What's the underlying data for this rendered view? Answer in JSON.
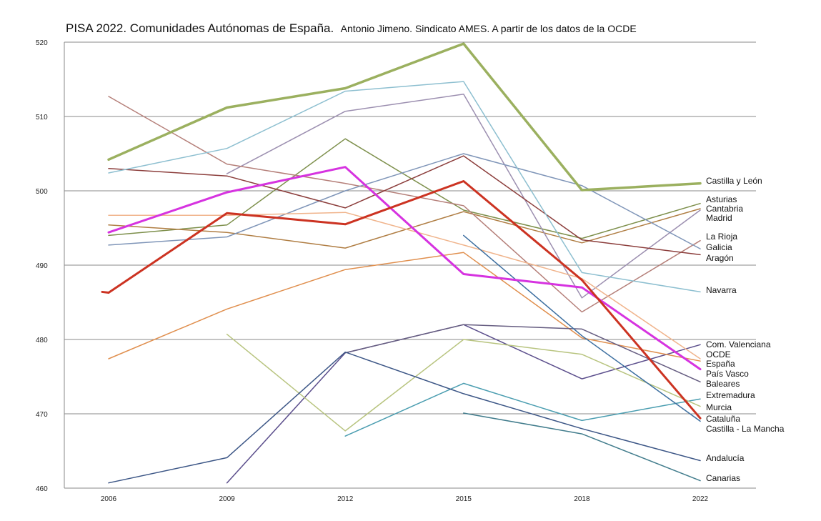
{
  "chart_data": {
    "type": "line",
    "title": "PISA 2022. Comunidades Autónomas de España.",
    "subtitle": "Antonio Jimeno. Sindicato AMES. A partir de los datos de la OCDE",
    "xlabel": "",
    "ylabel": "",
    "x": [
      2006,
      2009,
      2012,
      2015,
      2018,
      2022
    ],
    "ylim": [
      460,
      520
    ],
    "yticks": [
      460,
      470,
      480,
      490,
      500,
      510,
      520
    ],
    "grid": true,
    "series": [
      {
        "name": "Castilla y León",
        "color": "#9bb05f",
        "width": 3.5,
        "values": [
          504.2,
          511.2,
          513.8,
          519.8,
          500.1,
          501.0
        ]
      },
      {
        "name": "Asturias",
        "color": "#7d8f4b",
        "width": 1.5,
        "values": [
          494.0,
          495.4,
          507.0,
          497.4,
          493.6,
          498.3
        ]
      },
      {
        "name": "Cantabria",
        "color": "#b07e44",
        "width": 1.5,
        "values": [
          495.4,
          494.4,
          492.3,
          497.2,
          493.0,
          497.6
        ]
      },
      {
        "name": "Madrid",
        "color": "#9c8fb0",
        "width": 1.5,
        "values": [
          null,
          502.3,
          510.7,
          513.0,
          485.6,
          497.4
        ]
      },
      {
        "name": "La Rioja",
        "color": "#b57f79",
        "width": 1.5,
        "values": [
          512.7,
          503.6,
          501.0,
          498.0,
          483.7,
          493.3
        ]
      },
      {
        "name": "Galicia",
        "color": "#7f95b8",
        "width": 1.5,
        "values": [
          492.7,
          493.8,
          500.0,
          505.0,
          500.7,
          492.2
        ]
      },
      {
        "name": "Aragón",
        "color": "#8c3e3c",
        "width": 1.5,
        "values": [
          503.0,
          502.0,
          497.7,
          504.7,
          493.4,
          491.4
        ]
      },
      {
        "name": "Navarra",
        "color": "#8dbfd0",
        "width": 1.5,
        "values": [
          502.4,
          505.7,
          513.4,
          514.7,
          489.0,
          486.4
        ]
      },
      {
        "name": "Com. Valenciana",
        "color": "#5b4e8c",
        "width": 1.5,
        "values": [
          null,
          460.7,
          478.2,
          482.0,
          474.7,
          479.3
        ]
      },
      {
        "name": "OCDE",
        "color": "#f0b48c",
        "width": 1.5,
        "values": [
          496.7,
          496.7,
          497.1,
          492.7,
          488.2,
          477.4
        ]
      },
      {
        "name": "España",
        "color": "#e08f4e",
        "width": 1.5,
        "values": [
          477.4,
          484.1,
          489.4,
          491.7,
          480.2,
          477.1
        ]
      },
      {
        "name": "País Vasco",
        "color": "#d633e0",
        "width": 3,
        "values": [
          494.4,
          499.8,
          503.2,
          488.8,
          487.0,
          476.0
        ]
      },
      {
        "name": "Baleares",
        "color": "#655c80",
        "width": 1.5,
        "values": [
          null,
          null,
          478.2,
          482.0,
          481.4,
          474.3
        ]
      },
      {
        "name": "Extremadura",
        "color": "#4a9db0",
        "width": 1.5,
        "values": [
          null,
          null,
          467.0,
          474.1,
          469.1,
          472.0
        ]
      },
      {
        "name": "Murcia",
        "color": "#b8c47f",
        "width": 1.5,
        "values": [
          null,
          480.7,
          467.7,
          480.0,
          478.0,
          471.0
        ]
      },
      {
        "name": "Cataluña",
        "color": "#cc3322",
        "width": 3,
        "values": [
          486.3,
          497.0,
          495.5,
          501.3,
          488.0,
          469.4
        ]
      },
      {
        "name": "Castilla - La Mancha",
        "color": "#3d6fa0",
        "width": 1.5,
        "values": [
          null,
          null,
          null,
          494.0,
          480.5,
          469.0
        ]
      },
      {
        "name": "Andalucía",
        "color": "#3c5686",
        "width": 1.5,
        "values": [
          460.7,
          464.1,
          478.3,
          472.7,
          468.0,
          463.7
        ]
      },
      {
        "name": "Canarias",
        "color": "#417c8c",
        "width": 1.5,
        "values": [
          null,
          null,
          null,
          470.1,
          467.3,
          461.0
        ]
      }
    ],
    "legend_labels": [
      "Castilla y León",
      "Asturias",
      "Cantabria",
      "Madrid",
      "La Rioja",
      "Galicia",
      "Aragón",
      "Navarra",
      "Com. Valenciana",
      "OCDE",
      "España",
      "País Vasco",
      "Baleares",
      "Extremadura",
      "Murcia",
      "Cataluña",
      "Castilla - La Mancha",
      "Andalucía",
      "Canarias"
    ],
    "legend": "right, at line ends"
  }
}
